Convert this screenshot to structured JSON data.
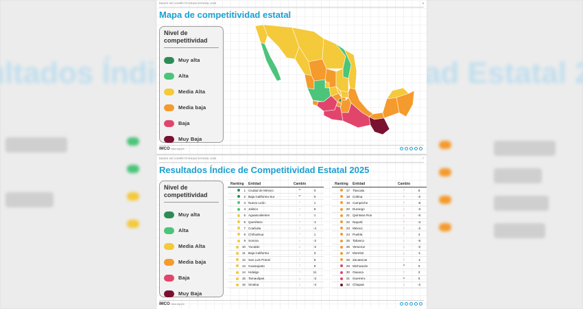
{
  "page1": {
    "header": "ÍNDICE DE COMPETITIVIDAD ESTATAL 2025",
    "page_number": "6",
    "title": "Mapa de competitividad estatal"
  },
  "page2": {
    "header": "ÍNDICE DE COMPETITIVIDAD ESTATAL 2025",
    "page_number": "7",
    "title": "Resultados Índice de Competitividad Estatal 2025"
  },
  "legend": {
    "title": "Nivel de competitividad",
    "items": [
      {
        "label": "Muy alta",
        "color": "#2e8b57"
      },
      {
        "label": "Alta",
        "color": "#4cc47a"
      },
      {
        "label": "Media Alta",
        "color": "#f4c93a"
      },
      {
        "label": "Media baja",
        "color": "#f59a2c"
      },
      {
        "label": "Baja",
        "color": "#e2456b"
      },
      {
        "label": "Muy Baja",
        "color": "#7a1130"
      }
    ]
  },
  "footer": {
    "logo": "IMCO",
    "site": "imco.org.mx"
  },
  "table_headers": {
    "ranking": "Ranking",
    "entidad": "Entidad",
    "cambio": "Cambio"
  },
  "rankings_left": [
    {
      "rank": "1",
      "entidad": "Ciudad de México",
      "dir": "=",
      "cambio": "0",
      "level": 0
    },
    {
      "rank": "2",
      "entidad": "Baja California Sur",
      "dir": "=",
      "cambio": "0",
      "level": 0
    },
    {
      "rank": "3",
      "entidad": "Nuevo León",
      "dir": "↑",
      "cambio": "1",
      "level": 1
    },
    {
      "rank": "4",
      "entidad": "Jalisco",
      "dir": "↑",
      "cambio": "6",
      "level": 1
    },
    {
      "rank": "5",
      "entidad": "Aguascalientes",
      "dir": "↑",
      "cambio": "1",
      "level": 2
    },
    {
      "rank": "6",
      "entidad": "Querétaro",
      "dir": "↓",
      "cambio": "-1",
      "level": 2
    },
    {
      "rank": "7",
      "entidad": "Coahuila",
      "dir": "↓",
      "cambio": "-4",
      "level": 2
    },
    {
      "rank": "8",
      "entidad": "Chihuahua",
      "dir": "↑",
      "cambio": "1",
      "level": 2
    },
    {
      "rank": "9",
      "entidad": "Sonora",
      "dir": "↓",
      "cambio": "-2",
      "level": 2
    },
    {
      "rank": "10",
      "entidad": "Yucatán",
      "dir": "↓",
      "cambio": "-2",
      "level": 2
    },
    {
      "rank": "11",
      "entidad": "Baja California",
      "dir": "↑",
      "cambio": "3",
      "level": 2
    },
    {
      "rank": "12",
      "entidad": "San Luis Potosí",
      "dir": "↑",
      "cambio": "6",
      "level": 2
    },
    {
      "rank": "13",
      "entidad": "Guanajuato",
      "dir": "↑",
      "cambio": "9",
      "level": 2
    },
    {
      "rank": "14",
      "entidad": "Hidalgo",
      "dir": "↑",
      "cambio": "11",
      "level": 2
    },
    {
      "rank": "15",
      "entidad": "Tamaulipas",
      "dir": "↓",
      "cambio": "-3",
      "level": 2
    },
    {
      "rank": "16",
      "entidad": "Sinaloa",
      "dir": "↓",
      "cambio": "-3",
      "level": 2
    }
  ],
  "rankings_right": [
    {
      "rank": "17",
      "entidad": "Tlaxcala",
      "dir": "↑",
      "cambio": "6",
      "level": 3
    },
    {
      "rank": "18",
      "entidad": "Colima",
      "dir": "↓",
      "cambio": "-2",
      "level": 3
    },
    {
      "rank": "19",
      "entidad": "Campeche",
      "dir": "↓",
      "cambio": "-8",
      "level": 3
    },
    {
      "rank": "20",
      "entidad": "Durango",
      "dir": "↓",
      "cambio": "-3",
      "level": 3
    },
    {
      "rank": "21",
      "entidad": "Quintana Roo",
      "dir": "↓",
      "cambio": "-6",
      "level": 3
    },
    {
      "rank": "22",
      "entidad": "Nayarit",
      "dir": "↓",
      "cambio": "-3",
      "level": 3
    },
    {
      "rank": "23",
      "entidad": "México",
      "dir": "↓",
      "cambio": "-2",
      "level": 3
    },
    {
      "rank": "24",
      "entidad": "Puebla",
      "dir": "↑",
      "cambio": "4",
      "level": 3
    },
    {
      "rank": "25",
      "entidad": "Tabasco",
      "dir": "↓",
      "cambio": "-5",
      "level": 3
    },
    {
      "rank": "26",
      "entidad": "Veracruz",
      "dir": "↓",
      "cambio": "-2",
      "level": 3
    },
    {
      "rank": "27",
      "entidad": "Morelos",
      "dir": "↓",
      "cambio": "-1",
      "level": 3
    },
    {
      "rank": "28",
      "entidad": "Zacatecas",
      "dir": "↓",
      "cambio": "-1",
      "level": 3
    },
    {
      "rank": "29",
      "entidad": "Michoacán",
      "dir": "=",
      "cambio": "0",
      "level": 4
    },
    {
      "rank": "30",
      "entidad": "Oaxaca",
      "dir": "↑",
      "cambio": "2",
      "level": 4
    },
    {
      "rank": "31",
      "entidad": "Guerrero",
      "dir": "=",
      "cambio": "0",
      "level": 4
    },
    {
      "rank": "32",
      "entidad": "Chiapas",
      "dir": "↓",
      "cambio": "-2",
      "level": 5
    }
  ],
  "colors": {
    "up": "#2e9e5b",
    "down": "#d6374f",
    "same": "#666666"
  }
}
